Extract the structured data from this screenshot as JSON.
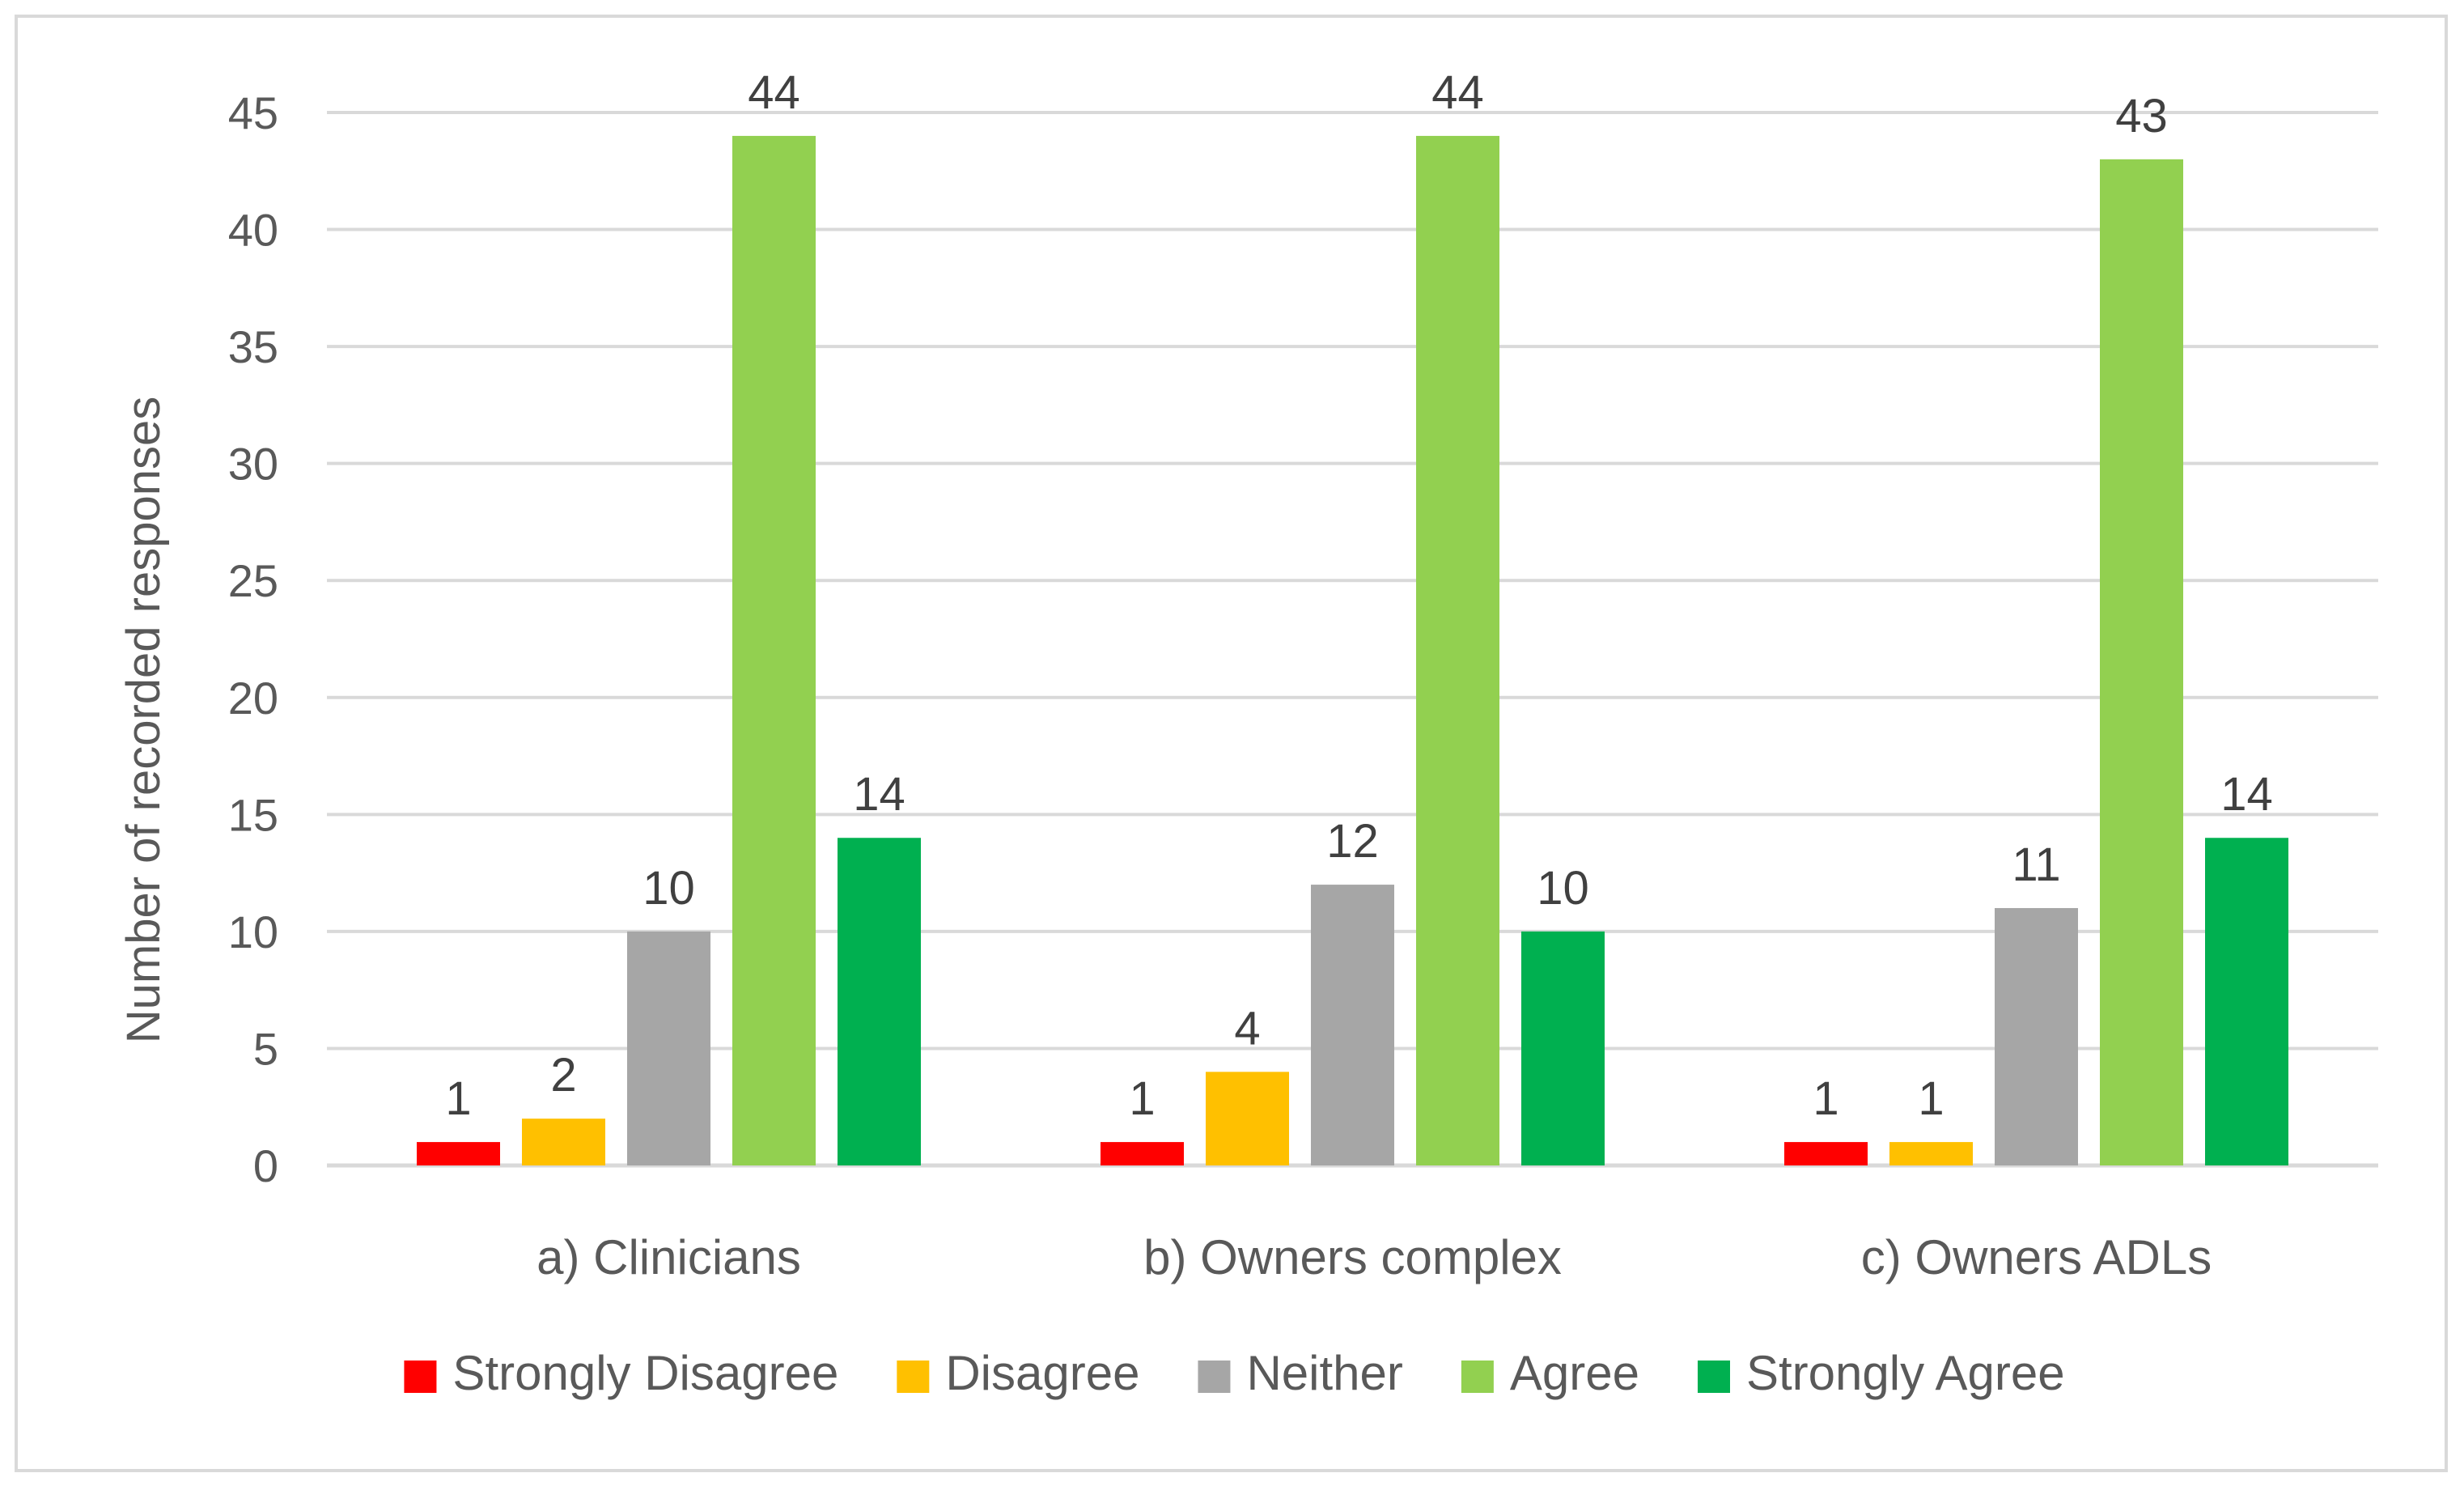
{
  "chart_data": {
    "type": "bar",
    "title": "",
    "xlabel": "",
    "ylabel": "Number of recorded responses",
    "ylim": [
      0,
      45
    ],
    "yticks": [
      0,
      5,
      10,
      15,
      20,
      25,
      30,
      35,
      40,
      45
    ],
    "grid": true,
    "legend_position": "bottom",
    "categories": [
      "a) Clinicians",
      "b) Owners complex",
      "c) Owners ADLs"
    ],
    "series": [
      {
        "name": "Strongly Disagree",
        "color": "#ff0000",
        "values": [
          1,
          1,
          1
        ]
      },
      {
        "name": "Disagree",
        "color": "#ffc000",
        "values": [
          2,
          4,
          1
        ]
      },
      {
        "name": "Neither",
        "color": "#a6a6a6",
        "values": [
          10,
          12,
          11
        ]
      },
      {
        "name": "Agree",
        "color": "#92d050",
        "values": [
          44,
          44,
          43
        ]
      },
      {
        "name": "Strongly Agree",
        "color": "#00b050",
        "values": [
          14,
          10,
          14
        ]
      }
    ]
  }
}
